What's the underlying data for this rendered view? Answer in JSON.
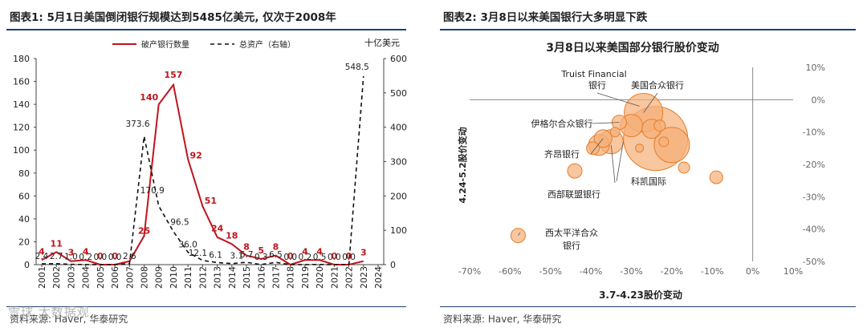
{
  "panels": {
    "left": {
      "title": "图表1: 5月1日美国倒闭银行规模达到5485亿美元, 仅次于2008年",
      "source": "资料来源: Haver, 华泰研究"
    },
    "right": {
      "title": "图表2: 3月8日以来美国银行大多明显下跌",
      "source": "资料来源: Haver, 华泰研究"
    }
  },
  "watermark": "雪球 大数据观",
  "colors": {
    "red": "#c0141c",
    "orange_fill": "#f5b07a",
    "orange_stroke": "#e57e2b",
    "rule": "#1f3f73"
  },
  "chart_data": [
    {
      "type": "line",
      "title": "",
      "x": [
        "2001",
        "2002",
        "2003",
        "2004",
        "2005",
        "2006",
        "2007",
        "2008",
        "2009",
        "2010",
        "2011",
        "2012",
        "2013",
        "2014",
        "2015",
        "2016",
        "2017",
        "2018",
        "2019",
        "2020",
        "2021",
        "2022",
        "2023",
        "2024"
      ],
      "series": [
        {
          "name": "破产银行数量",
          "axis": "left",
          "style": "solid",
          "values": [
            4,
            11,
            3,
            4,
            0,
            0,
            3,
            25,
            140,
            157,
            92,
            51,
            24,
            18,
            8,
            5,
            8,
            0,
            4,
            4,
            0,
            0,
            3,
            null
          ],
          "labels": [
            "4",
            "11",
            "3",
            "4",
            "0",
            "0",
            "",
            "25",
            "140",
            "157",
            "92",
            "51",
            "24",
            "18",
            "8",
            "5",
            "8",
            "0",
            "4",
            "4",
            "0",
            "0",
            "3",
            ""
          ]
        },
        {
          "name": "总资产（右轴）",
          "axis": "right",
          "style": "dashed",
          "values": [
            2.4,
            2.7,
            1.0,
            0.2,
            0.0,
            0.0,
            2.6,
            373.6,
            170.9,
            96.5,
            36.0,
            12.1,
            6.1,
            3.1,
            6.7,
            0.3,
            6.5,
            0.0,
            0.2,
            0.5,
            0.0,
            0.0,
            548.5,
            null
          ],
          "labels": [
            "2.4",
            "2.7",
            "1.0",
            "0.2",
            "0.0",
            "0.0",
            "2.6",
            "373.6",
            "170.9",
            "96.5",
            "36.0",
            "12.1",
            "6.1",
            "3.1",
            "6.7",
            "0.3",
            "6.5",
            "0.0",
            "0.2",
            "0.5",
            "0.0",
            "0.0",
            "548.5",
            ""
          ]
        }
      ],
      "y_left": {
        "lim": [
          0,
          180
        ],
        "ticks": [
          "0",
          "20",
          "40",
          "60",
          "80",
          "100",
          "120",
          "140",
          "160",
          "180"
        ]
      },
      "y_right": {
        "lim": [
          0,
          600
        ],
        "ticks": [
          "0",
          "100",
          "200",
          "300",
          "400",
          "500",
          "600"
        ],
        "unit": "十亿美元"
      },
      "legend": {
        "position": "top",
        "entries": [
          "破产银行数量",
          "总资产（右轴）"
        ]
      }
    },
    {
      "type": "scatter",
      "title": "3月8日以来美国部分银行股价变动",
      "xlabel": "3.7-4.23股价变动",
      "ylabel": "4.24-5.2股价变动",
      "xlim": [
        -70,
        10
      ],
      "ylim": [
        -50,
        10
      ],
      "x_ticks": [
        "-70%",
        "-60%",
        "-50%",
        "-40%",
        "-30%",
        "-20%",
        "-10%",
        "0%",
        "10%"
      ],
      "y_ticks": [
        "10%",
        "0%",
        "-10%",
        "-20%",
        "-30%",
        "-40%",
        "-50%"
      ],
      "points": [
        {
          "x": -24,
          "y": -12,
          "size": 40
        },
        {
          "x": -20,
          "y": -14,
          "size": 22
        },
        {
          "x": -27,
          "y": -4,
          "size": 24
        },
        {
          "x": -30,
          "y": -8,
          "size": 14
        },
        {
          "x": -35,
          "y": -13,
          "size": 15
        },
        {
          "x": -37,
          "y": -12,
          "size": 11
        },
        {
          "x": -38,
          "y": -14,
          "size": 13
        },
        {
          "x": -33,
          "y": -7,
          "size": 9
        },
        {
          "x": -25,
          "y": -9,
          "size": 12
        },
        {
          "x": -23,
          "y": -8,
          "size": 7
        },
        {
          "x": -22,
          "y": -13,
          "size": 6
        },
        {
          "x": -17,
          "y": -21,
          "size": 7
        },
        {
          "x": -9,
          "y": -24,
          "size": 8
        },
        {
          "x": -44,
          "y": -22,
          "size": 9
        },
        {
          "x": -34,
          "y": -10,
          "size": 6
        },
        {
          "x": -39.5,
          "y": -15,
          "size": 8
        },
        {
          "x": -28,
          "y": -15,
          "size": 5
        },
        {
          "x": -58,
          "y": -42,
          "size": 9
        }
      ],
      "annotations": [
        "Truist Financial",
        "银行",
        "美国合众银行",
        "伊格尔合众银行",
        "齐昂银行",
        "科凯国际",
        "西部联盟银行",
        "西太平洋合众",
        "银行"
      ]
    }
  ]
}
